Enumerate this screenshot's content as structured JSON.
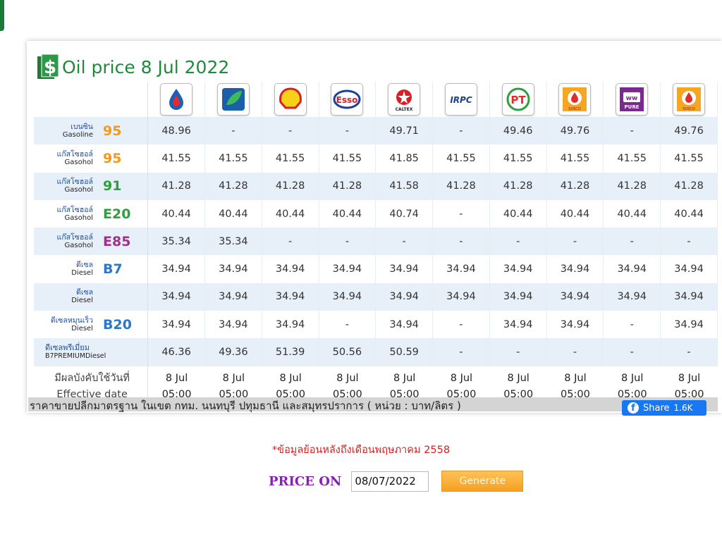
{
  "page": {
    "title": "Oil price 8 Jul 2022",
    "icon": "dollar-document-icon"
  },
  "brands": [
    {
      "name": "PTT Station",
      "icon": "ptt-logo-icon",
      "color": "#1a60b8"
    },
    {
      "name": "Bangchak",
      "icon": "bangchak-logo-icon",
      "color": "#1b8a3e"
    },
    {
      "name": "Shell",
      "icon": "shell-logo-icon",
      "color": "#f7d117"
    },
    {
      "name": "Esso",
      "icon": "esso-logo-icon",
      "color": "#d61f26"
    },
    {
      "name": "Caltex",
      "icon": "caltex-logo-icon",
      "color": "#d61f26"
    },
    {
      "name": "IRPC",
      "icon": "irpc-logo-icon",
      "color": "#1b3f8f"
    },
    {
      "name": "PT",
      "icon": "pt-logo-icon",
      "color": "#2e9e3f"
    },
    {
      "name": "Susco",
      "icon": "susco-logo-icon",
      "color": "#f5a623"
    },
    {
      "name": "Pure",
      "icon": "pure-logo-icon",
      "color": "#7a2a8f"
    },
    {
      "name": "Susco Dealers",
      "icon": "susco-dealers-logo-icon",
      "color": "#f5a623"
    }
  ],
  "rows": [
    {
      "thai": "เบนซิน",
      "en": "Gasoline",
      "grade": "95",
      "grade_color": "#f29a1d",
      "values": [
        "48.96",
        "-",
        "-",
        "-",
        "49.71",
        "-",
        "49.46",
        "49.76",
        "-",
        "49.76"
      ]
    },
    {
      "thai": "แก๊สโซฮอล์",
      "en": "Gasohol",
      "grade": "95",
      "grade_color": "#f29a1d",
      "values": [
        "41.55",
        "41.55",
        "41.55",
        "41.55",
        "41.85",
        "41.55",
        "41.55",
        "41.55",
        "41.55",
        "41.55"
      ]
    },
    {
      "thai": "แก๊สโซฮอล์",
      "en": "Gasohol",
      "grade": "91",
      "grade_color": "#2e9e3f",
      "values": [
        "41.28",
        "41.28",
        "41.28",
        "41.28",
        "41.58",
        "41.28",
        "41.28",
        "41.28",
        "41.28",
        "41.28"
      ]
    },
    {
      "thai": "แก๊สโซฮอล์",
      "en": "Gasohol",
      "grade": "E20",
      "grade_color": "#2e9e3f",
      "values": [
        "40.44",
        "40.44",
        "40.44",
        "40.44",
        "40.74",
        "-",
        "40.44",
        "40.44",
        "40.44",
        "40.44"
      ]
    },
    {
      "thai": "แก๊สโซฮอล์",
      "en": "Gasohol",
      "grade": "E85",
      "grade_color": "#a0308a",
      "values": [
        "35.34",
        "35.34",
        "-",
        "-",
        "-",
        "-",
        "-",
        "-",
        "-",
        "-"
      ]
    },
    {
      "thai": "ดีเซล",
      "en": "Diesel",
      "grade": "B7",
      "grade_color": "#2a78c8",
      "values": [
        "34.94",
        "34.94",
        "34.94",
        "34.94",
        "34.94",
        "34.94",
        "34.94",
        "34.94",
        "34.94",
        "34.94"
      ]
    },
    {
      "thai": "ดีเซล",
      "en": "Diesel",
      "grade": "",
      "grade_color": "#2a78c8",
      "values": [
        "34.94",
        "34.94",
        "34.94",
        "34.94",
        "34.94",
        "34.94",
        "34.94",
        "34.94",
        "34.94",
        "34.94"
      ]
    },
    {
      "thai": "ดีเซลหมุนเร็ว",
      "en": "Diesel",
      "grade": "B20",
      "grade_color": "#2a78c8",
      "values": [
        "34.94",
        "34.94",
        "34.94",
        "-",
        "34.94",
        "-",
        "34.94",
        "34.94",
        "-",
        "34.94"
      ]
    },
    {
      "thai": "ดีเซลพรีเมี่ยม",
      "en": "B7PREMIUMDiesel",
      "grade": "",
      "grade_color": "#2a78c8",
      "values": [
        "46.36",
        "49.36",
        "51.39",
        "50.56",
        "50.59",
        "-",
        "-",
        "-",
        "-",
        "-"
      ]
    }
  ],
  "effective": {
    "label_thai": "มีผลบังคับใช้วันที่",
    "label_en": "Effective date",
    "date": "8 Jul",
    "time": "05:00"
  },
  "footer": {
    "text": "ราคาขายปลีกมาตรฐาน ในเขต กทม. นนทบุรี ปทุมธานี และสมุทรปราการ ( หน่วย : บาท/ลิตร )",
    "share_label": "Share",
    "share_count": "1.6K"
  },
  "note": "*ข้อมูลย้อนหลังถึงเดือนพฤษภาคม 2558",
  "form": {
    "price_on_label": "PRICE ON",
    "date_value": "08/07/2022",
    "generate_label": "Generate"
  }
}
